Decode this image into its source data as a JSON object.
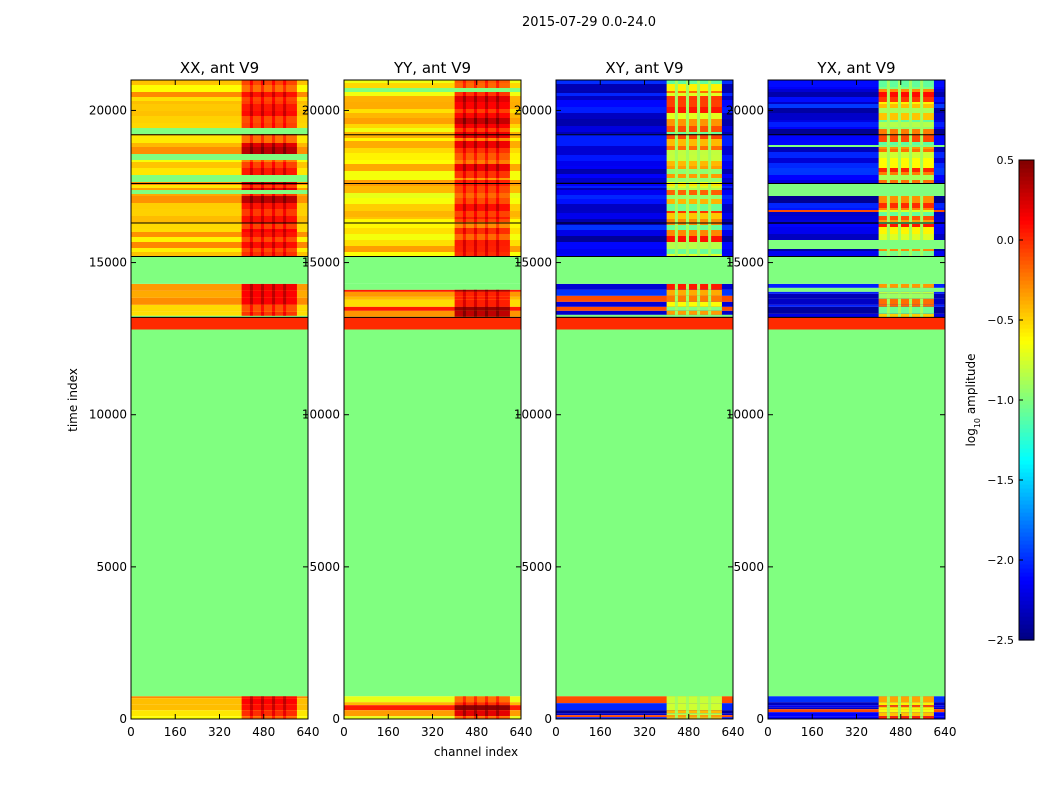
{
  "figure": {
    "suptitle": "2015-07-29 0.0-24.0"
  },
  "chart_data": {
    "type": "heatmap",
    "suptitle": "2015-07-29 0.0-24.0",
    "xlabel": "channel index",
    "ylabel": "time index",
    "xlim": [
      0,
      640
    ],
    "ylim": [
      0,
      21000
    ],
    "xticks": [
      0,
      160,
      320,
      480,
      640
    ],
    "yticks": [
      0,
      5000,
      10000,
      15000,
      20000
    ],
    "panels": [
      {
        "title": "XX, ant V9",
        "pol": "XX",
        "base_value": -0.45
      },
      {
        "title": "YY, ant V9",
        "pol": "YY",
        "base_value": -0.5
      },
      {
        "title": "XY, ant V9",
        "pol": "XY",
        "base_value": -2.2
      },
      {
        "title": "YX, ant V9",
        "pol": "YX",
        "base_value": -2.2
      }
    ],
    "flagged_value": -1.0,
    "band_value": 0.0,
    "bright_channel_range": [
      400,
      600
    ],
    "segments": [
      {
        "start": 0,
        "end": 750,
        "state": "data"
      },
      {
        "start": 750,
        "end": 12800,
        "state": "flagged"
      },
      {
        "start": 12800,
        "end": 13200,
        "state": "band"
      },
      {
        "start": 13200,
        "end": 14300,
        "state": "data"
      },
      {
        "start": 14300,
        "end": 15200,
        "state": "flagged"
      },
      {
        "start": 15200,
        "end": 21000,
        "state": "data"
      }
    ],
    "data_gap_lines": [
      16300,
      17600,
      19200
    ],
    "colorbar": {
      "label_main": "log",
      "label_sub": "10",
      "label_rest": " amplitude",
      "vmin": -2.5,
      "vmax": 0.5,
      "ticks": [
        0.5,
        0.0,
        -0.5,
        -1.0,
        -1.5,
        -2.0,
        -2.5
      ],
      "tick_labels": [
        "0.5",
        "0.0",
        "−0.5",
        "−1.0",
        "−1.5",
        "−2.0",
        "−2.5"
      ],
      "colormap": "jet"
    }
  }
}
